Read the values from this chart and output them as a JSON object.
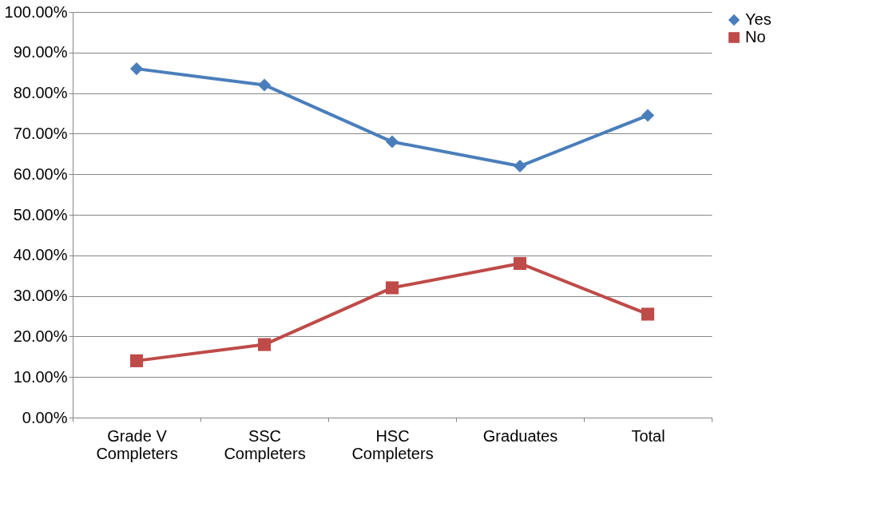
{
  "chart_data": {
    "type": "line",
    "categories": [
      "Grade V Completers",
      "SSC Completers",
      "HSC Completers",
      "Graduates",
      "Total"
    ],
    "series": [
      {
        "name": "Yes",
        "color": "#4a7ebb",
        "marker": "diamond",
        "values": [
          86,
          82,
          68,
          62,
          74.5
        ]
      },
      {
        "name": "No",
        "color": "#be4b48",
        "marker": "square",
        "values": [
          14,
          18,
          32,
          38,
          25.5
        ]
      }
    ],
    "ylim": [
      0,
      100
    ],
    "yticks": [
      {
        "value": 0,
        "label": "0.00%"
      },
      {
        "value": 10,
        "label": "10.00%"
      },
      {
        "value": 20,
        "label": "20.00%"
      },
      {
        "value": 30,
        "label": "30.00%"
      },
      {
        "value": 40,
        "label": "40.00%"
      },
      {
        "value": 50,
        "label": "50.00%"
      },
      {
        "value": 60,
        "label": "60.00%"
      },
      {
        "value": 70,
        "label": "70.00%"
      },
      {
        "value": 80,
        "label": "80.00%"
      },
      {
        "value": 90,
        "label": "90.00%"
      },
      {
        "value": 100,
        "label": "100.00%"
      }
    ],
    "grid": "y",
    "legend": "right",
    "line_style": "solid"
  }
}
